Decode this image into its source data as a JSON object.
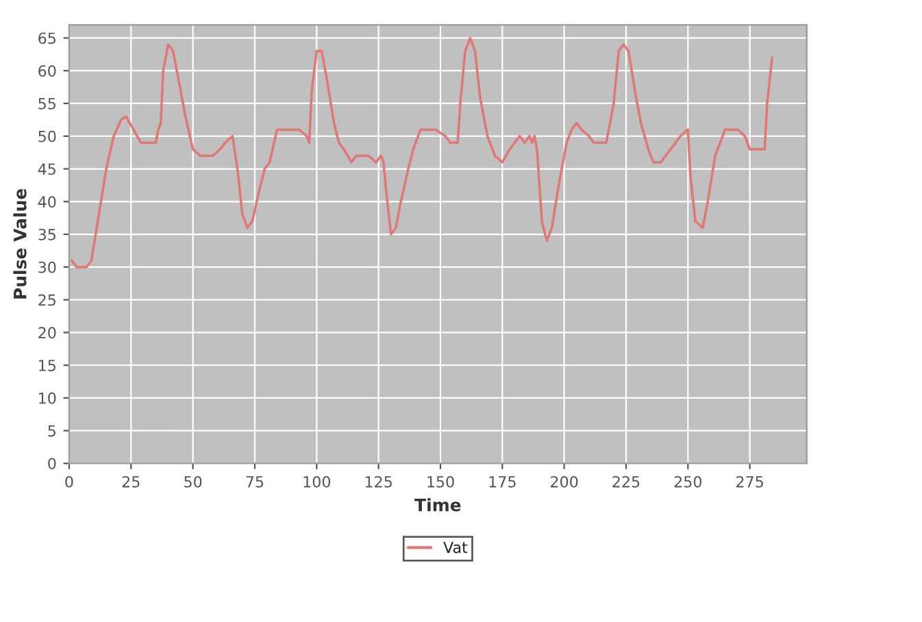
{
  "chart_data": {
    "type": "line",
    "xlabel": "Time",
    "ylabel": "Pulse Value",
    "xlim": [
      0,
      298
    ],
    "ylim": [
      0,
      67
    ],
    "xticks": [
      0,
      25,
      50,
      75,
      100,
      125,
      150,
      175,
      200,
      225,
      250,
      275
    ],
    "yticks": [
      0,
      5,
      10,
      15,
      20,
      25,
      30,
      35,
      40,
      45,
      50,
      55,
      60,
      65
    ],
    "grid": true,
    "legend": "bottom",
    "marker": "none",
    "line_style": "solid",
    "series": [
      {
        "name": "Vat",
        "color": "#e07878",
        "x": [
          1,
          3,
          7,
          9,
          12,
          15,
          18,
          21,
          23,
          26,
          29,
          35,
          36,
          37,
          38,
          40,
          42,
          44,
          47,
          50,
          53,
          58,
          61,
          63,
          66,
          68,
          70,
          72,
          74,
          77,
          79,
          81,
          84,
          88,
          93,
          96,
          97,
          98,
          100,
          102,
          104,
          107,
          109,
          111,
          114,
          116,
          121,
          124,
          126,
          127,
          128,
          130,
          132,
          134,
          137,
          139,
          142,
          148,
          152,
          154,
          157,
          158,
          160,
          162,
          164,
          166,
          169,
          172,
          175,
          178,
          182,
          184,
          186,
          187,
          188,
          189,
          191,
          193,
          195,
          198,
          201,
          203,
          205,
          207,
          210,
          212,
          217,
          220,
          222,
          224,
          226,
          229,
          231,
          234,
          236,
          239,
          243,
          247,
          250,
          251,
          253,
          256,
          258,
          261,
          265,
          270,
          273,
          275,
          281,
          282,
          284
        ],
        "values": [
          31,
          30,
          30,
          31,
          38,
          45,
          50,
          52.5,
          53,
          51,
          49,
          49,
          51,
          52,
          60,
          64,
          63,
          59,
          53,
          48,
          47,
          47,
          48,
          49,
          50,
          45,
          38,
          36,
          37,
          42,
          45,
          46,
          51,
          51,
          51,
          50,
          49,
          57,
          63,
          63,
          59,
          52,
          49,
          48,
          46,
          47,
          47,
          46,
          47,
          46,
          42,
          35,
          36,
          40,
          45,
          48,
          51,
          51,
          50,
          49,
          49,
          55,
          63,
          65,
          63,
          56,
          50,
          47,
          46,
          48,
          50,
          49,
          50,
          49,
          50,
          48,
          37,
          34,
          36,
          43,
          49,
          51,
          52,
          51,
          50,
          49,
          49,
          55,
          63,
          64,
          63,
          56,
          52,
          48,
          46,
          46,
          48,
          50,
          51,
          44,
          37,
          36,
          40,
          47,
          51,
          51,
          50,
          48,
          48,
          55,
          62
        ]
      }
    ]
  }
}
